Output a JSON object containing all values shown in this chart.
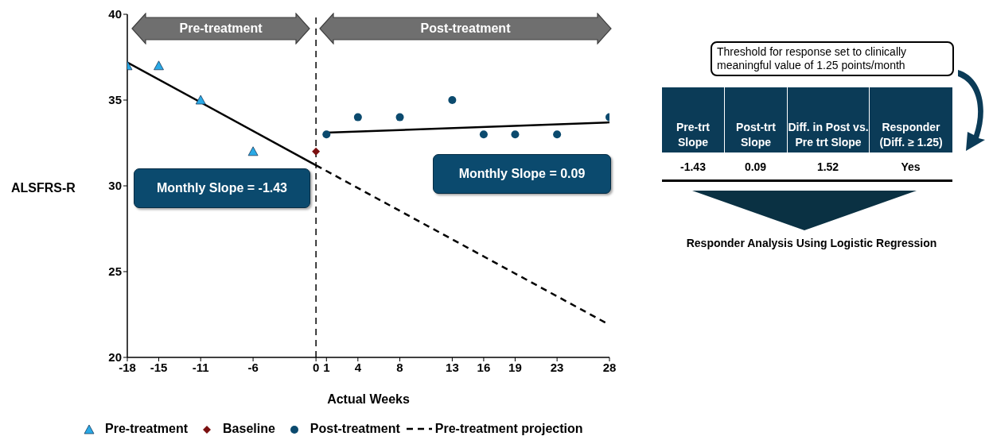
{
  "chart_data": [
    {
      "type": "scatter",
      "xlabel": "Actual Weeks",
      "ylabel": "ALSFRS-R",
      "xlim": [
        -18,
        28
      ],
      "ylim": [
        20,
        40
      ],
      "xticks": [
        -18,
        -15,
        -11,
        -6,
        0,
        1,
        4,
        8,
        13,
        16,
        19,
        23,
        28
      ],
      "yticks": [
        20,
        25,
        30,
        35,
        40
      ],
      "legend": "bottom",
      "series": [
        {
          "name": "Pre-treatment",
          "type": "scatter",
          "marker": "triangle",
          "color": "#29a9e6",
          "x": [
            -18,
            -15,
            -11,
            -6
          ],
          "values": [
            37,
            37,
            35,
            32
          ]
        },
        {
          "name": "Baseline",
          "type": "scatter",
          "marker": "diamond",
          "color": "#7b1010",
          "x": [
            0
          ],
          "values": [
            32
          ]
        },
        {
          "name": "Post-treatment",
          "type": "scatter",
          "marker": "circle",
          "color": "#0b4a6e",
          "x": [
            1,
            4,
            8,
            13,
            16,
            19,
            23,
            28
          ],
          "values": [
            33,
            34,
            34,
            35,
            33,
            33,
            33,
            34
          ]
        },
        {
          "type": "line",
          "color": "#000000",
          "line_style": "solid",
          "x": [
            -18,
            0
          ],
          "values": [
            37.2,
            31.2
          ]
        },
        {
          "name": "Pre-treatment projection",
          "type": "line",
          "color": "#000000",
          "line_style": "dashed",
          "x": [
            0,
            28
          ],
          "values": [
            31.2,
            21.9
          ]
        },
        {
          "type": "line",
          "color": "#000000",
          "line_style": "solid",
          "x": [
            1,
            28
          ],
          "values": [
            33.1,
            33.7
          ]
        }
      ],
      "ref_lines": [
        {
          "axis": "x",
          "value": 0,
          "color": "#000000",
          "line_style": "dashed"
        }
      ],
      "annotations": [
        "Pre-treatment",
        "Post-treatment",
        "Monthly Slope = -1.43",
        "Monthly Slope = 0.09"
      ]
    },
    {
      "type": "other",
      "annotations": [
        "Threshold for response set to clinically meaningful value of 1.25 points/month",
        "Pre-trt Slope",
        "Post-trt Slope",
        "Diff. in Post vs. Pre trt Slope",
        "Responder (Diff. ≥ 1.25)",
        "-1.43",
        "0.09",
        "1.52",
        "Yes",
        "Responder Analysis Using Logistic Regression"
      ]
    }
  ]
}
